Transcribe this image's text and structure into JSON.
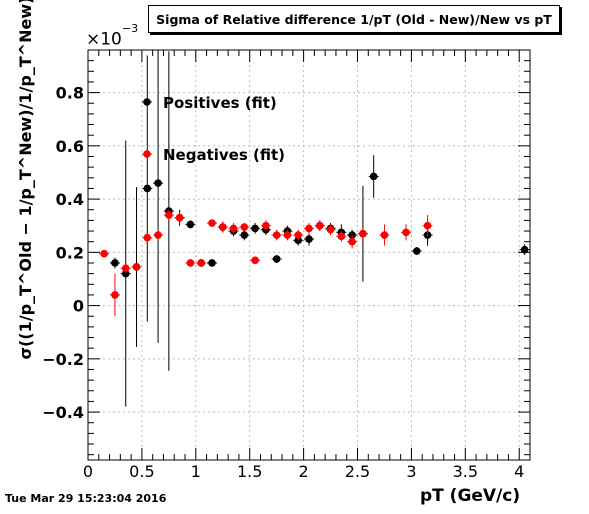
{
  "title": "Sigma of Relative difference 1/pT (Old - New)/New vs pT",
  "timestamp": "Tue Mar 29 15:23:04 2016",
  "multiplier": {
    "base": "×10",
    "exponent": "−3"
  },
  "colors": {
    "positives": "#000000",
    "negatives": "#ff0000",
    "grid": "#bbbbbb"
  },
  "chart_data": {
    "type": "scatter",
    "title": "Sigma of Relative difference 1/pT (Old - New)/New vs pT",
    "xlabel": "pT (GeV/c)",
    "ylabel": "σ((1/p_T^Old − 1/p_T^New)/1/p_T^New)",
    "xlim": [
      0,
      4.1
    ],
    "ylim": [
      -0.58,
      0.96
    ],
    "y_scale_note": "×10^-3",
    "grid": true,
    "legend_position": "top-left",
    "x_ticks": [
      "0",
      "0.5",
      "1",
      "1.5",
      "2",
      "2.5",
      "3",
      "3.5",
      "4"
    ],
    "y_ticks": [
      "−0.4",
      "−0.2",
      "0",
      "0.2",
      "0.4",
      "0.6",
      "0.8"
    ],
    "series": [
      {
        "name": "Positives (fit)",
        "color": "#000000",
        "points": [
          {
            "x": 0.25,
            "y": 0.16,
            "err": 0.02
          },
          {
            "x": 0.35,
            "y": 0.12,
            "err": 0.5
          },
          {
            "x": 0.45,
            "y": 0.145,
            "err": 0.3
          },
          {
            "x": 0.55,
            "y": 0.44,
            "err": 0.5
          },
          {
            "x": 0.65,
            "y": 0.46,
            "err": 0.6
          },
          {
            "x": 0.75,
            "y": 0.355,
            "err": 0.6
          },
          {
            "x": 0.85,
            "y": 0.33,
            "err": 0.03
          },
          {
            "x": 0.95,
            "y": 0.305,
            "err": 0.015
          },
          {
            "x": 1.05,
            "y": 0.16,
            "err": 0.01
          },
          {
            "x": 1.15,
            "y": 0.16,
            "err": 0.01
          },
          {
            "x": 1.25,
            "y": 0.295,
            "err": 0.02
          },
          {
            "x": 1.35,
            "y": 0.28,
            "err": 0.02
          },
          {
            "x": 1.45,
            "y": 0.265,
            "err": 0.02
          },
          {
            "x": 1.55,
            "y": 0.29,
            "err": 0.02
          },
          {
            "x": 1.65,
            "y": 0.285,
            "err": 0.02
          },
          {
            "x": 1.75,
            "y": 0.175,
            "err": 0.015
          },
          {
            "x": 1.85,
            "y": 0.28,
            "err": 0.02
          },
          {
            "x": 1.95,
            "y": 0.245,
            "err": 0.02
          },
          {
            "x": 2.05,
            "y": 0.25,
            "err": 0.025
          },
          {
            "x": 2.15,
            "y": 0.3,
            "err": 0.02
          },
          {
            "x": 2.25,
            "y": 0.29,
            "err": 0.02
          },
          {
            "x": 2.35,
            "y": 0.275,
            "err": 0.03
          },
          {
            "x": 2.45,
            "y": 0.265,
            "err": 0.02
          },
          {
            "x": 2.55,
            "y": 0.27,
            "err": 0.18
          },
          {
            "x": 2.65,
            "y": 0.485,
            "err": 0.08
          },
          {
            "x": 3.05,
            "y": 0.205,
            "err": 0.015
          },
          {
            "x": 3.15,
            "y": 0.265,
            "err": 0.04
          },
          {
            "x": 4.05,
            "y": 0.21,
            "err": 0.02
          }
        ]
      },
      {
        "name": "Negatives (fit)",
        "color": "#ff0000",
        "points": [
          {
            "x": 0.15,
            "y": 0.195,
            "err": 0.01
          },
          {
            "x": 0.25,
            "y": 0.04,
            "err": 0.08
          },
          {
            "x": 0.35,
            "y": 0.14,
            "err": 0.02
          },
          {
            "x": 0.45,
            "y": 0.145,
            "err": 0.01
          },
          {
            "x": 0.55,
            "y": 0.255,
            "err": 0.02
          },
          {
            "x": 0.65,
            "y": 0.265,
            "err": 0.02
          },
          {
            "x": 0.75,
            "y": 0.34,
            "err": 0.02
          },
          {
            "x": 0.85,
            "y": 0.33,
            "err": 0.02
          },
          {
            "x": 0.95,
            "y": 0.16,
            "err": 0.01
          },
          {
            "x": 1.05,
            "y": 0.16,
            "err": 0.01
          },
          {
            "x": 1.15,
            "y": 0.31,
            "err": 0.01
          },
          {
            "x": 1.25,
            "y": 0.295,
            "err": 0.02
          },
          {
            "x": 1.35,
            "y": 0.29,
            "err": 0.02
          },
          {
            "x": 1.45,
            "y": 0.295,
            "err": 0.015
          },
          {
            "x": 1.55,
            "y": 0.17,
            "err": 0.01
          },
          {
            "x": 1.65,
            "y": 0.3,
            "err": 0.02
          },
          {
            "x": 1.75,
            "y": 0.265,
            "err": 0.02
          },
          {
            "x": 1.85,
            "y": 0.265,
            "err": 0.02
          },
          {
            "x": 1.95,
            "y": 0.265,
            "err": 0.02
          },
          {
            "x": 2.05,
            "y": 0.29,
            "err": 0.02
          },
          {
            "x": 2.15,
            "y": 0.3,
            "err": 0.02
          },
          {
            "x": 2.25,
            "y": 0.285,
            "err": 0.02
          },
          {
            "x": 2.35,
            "y": 0.26,
            "err": 0.02
          },
          {
            "x": 2.45,
            "y": 0.24,
            "err": 0.025
          },
          {
            "x": 2.55,
            "y": 0.27,
            "err": 0.02
          },
          {
            "x": 2.75,
            "y": 0.265,
            "err": 0.04
          },
          {
            "x": 2.95,
            "y": 0.275,
            "err": 0.03
          },
          {
            "x": 3.15,
            "y": 0.3,
            "err": 0.04
          }
        ]
      }
    ]
  }
}
